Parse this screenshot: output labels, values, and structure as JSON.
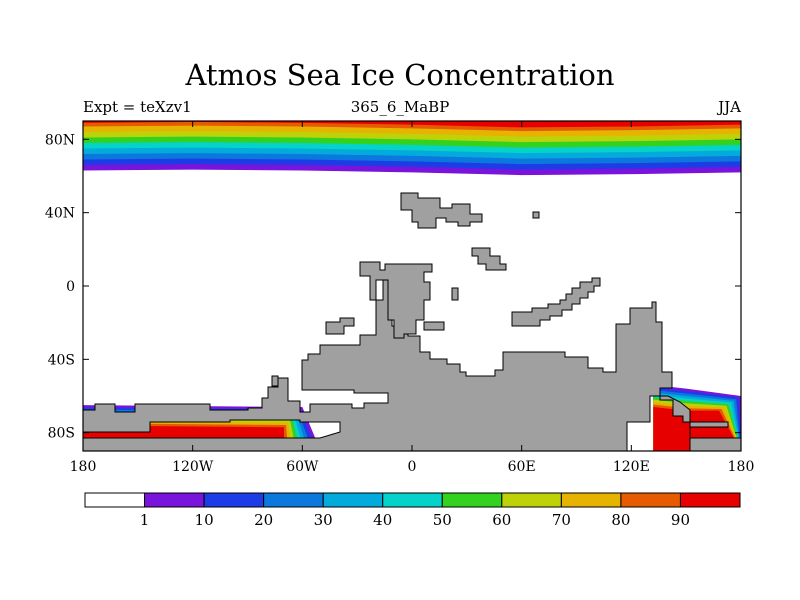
{
  "chart_data": {
    "type": "heatmap",
    "title": "Atmos Sea Ice Concentration",
    "subtitle_left": "Expt = teXzv1",
    "subtitle_center": "365_6_MaBP",
    "subtitle_right": "JJA",
    "projection": "cylindrical equidistant",
    "x_range": [
      -180,
      180
    ],
    "y_range": [
      -90,
      90
    ],
    "x_ticks": [
      {
        "value": -180,
        "label": "180"
      },
      {
        "value": -120,
        "label": "120W"
      },
      {
        "value": -60,
        "label": "60W"
      },
      {
        "value": 0,
        "label": "0"
      },
      {
        "value": 60,
        "label": "60E"
      },
      {
        "value": 120,
        "label": "120E"
      },
      {
        "value": 180,
        "label": "180"
      }
    ],
    "y_ticks": [
      {
        "value": 80,
        "label": "80N"
      },
      {
        "value": 40,
        "label": "40N"
      },
      {
        "value": 0,
        "label": "0"
      },
      {
        "value": -40,
        "label": "40S"
      },
      {
        "value": -80,
        "label": "80S"
      }
    ],
    "colorbar": {
      "labels": [
        "1",
        "10",
        "20",
        "30",
        "40",
        "50",
        "60",
        "70",
        "80",
        "90"
      ],
      "colors": [
        "#ffffff",
        "#7814dc",
        "#1e3ce6",
        "#0a78dc",
        "#05aadc",
        "#05d2c8",
        "#32d21e",
        "#bed20a",
        "#e6b400",
        "#e65a00",
        "#e60000"
      ]
    },
    "bands": {
      "arctic_boundaries_lat": [
        63,
        66,
        69,
        72,
        75,
        78,
        81,
        84,
        87,
        89
      ],
      "arctic_boundaries_lon": [
        -180,
        -120,
        -60,
        0,
        60,
        120,
        180
      ],
      "arctic_lower_edge_lat": [
        63,
        63.5,
        63,
        62,
        60.5,
        61,
        62
      ],
      "antarctic_pacific": {
        "lon": [
          -180,
          -60
        ],
        "lat_top": -65,
        "lat_bottom": -78
      },
      "antarctic_east": {
        "lon": [
          132,
          180
        ],
        "lat_top": -54,
        "lat_bottom": -82
      }
    },
    "land_color": "#a0a0a0",
    "ocean_color": "#ffffff"
  }
}
